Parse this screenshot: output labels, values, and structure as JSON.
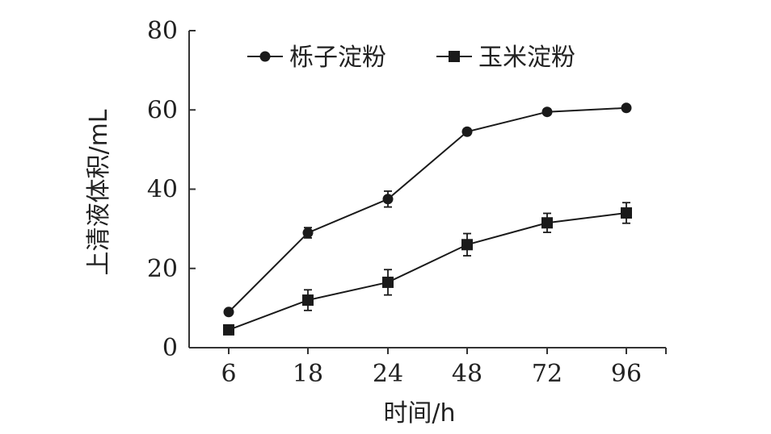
{
  "chart_data": {
    "type": "line",
    "categories": [
      "6",
      "18",
      "24",
      "48",
      "72",
      "96"
    ],
    "xlabel": "时间/h",
    "ylabel": "上清液体积/mL",
    "ylim": [
      0,
      80
    ],
    "yticks": [
      0,
      20,
      40,
      60,
      80
    ],
    "legend_position": "top",
    "series": [
      {
        "name": "栎子淀粉",
        "marker": "circle",
        "color": "#1a1a1a",
        "values": [
          9,
          29,
          37.5,
          54.5,
          59.5,
          60.5
        ],
        "errors": [
          0.5,
          1.3,
          2.0,
          0.7,
          0.7,
          0.7
        ]
      },
      {
        "name": "玉米淀粉",
        "marker": "square",
        "color": "#1a1a1a",
        "values": [
          4.5,
          12,
          16.5,
          26,
          31.5,
          34
        ],
        "errors": [
          0.4,
          2.6,
          3.2,
          2.8,
          2.4,
          2.6
        ]
      }
    ]
  }
}
